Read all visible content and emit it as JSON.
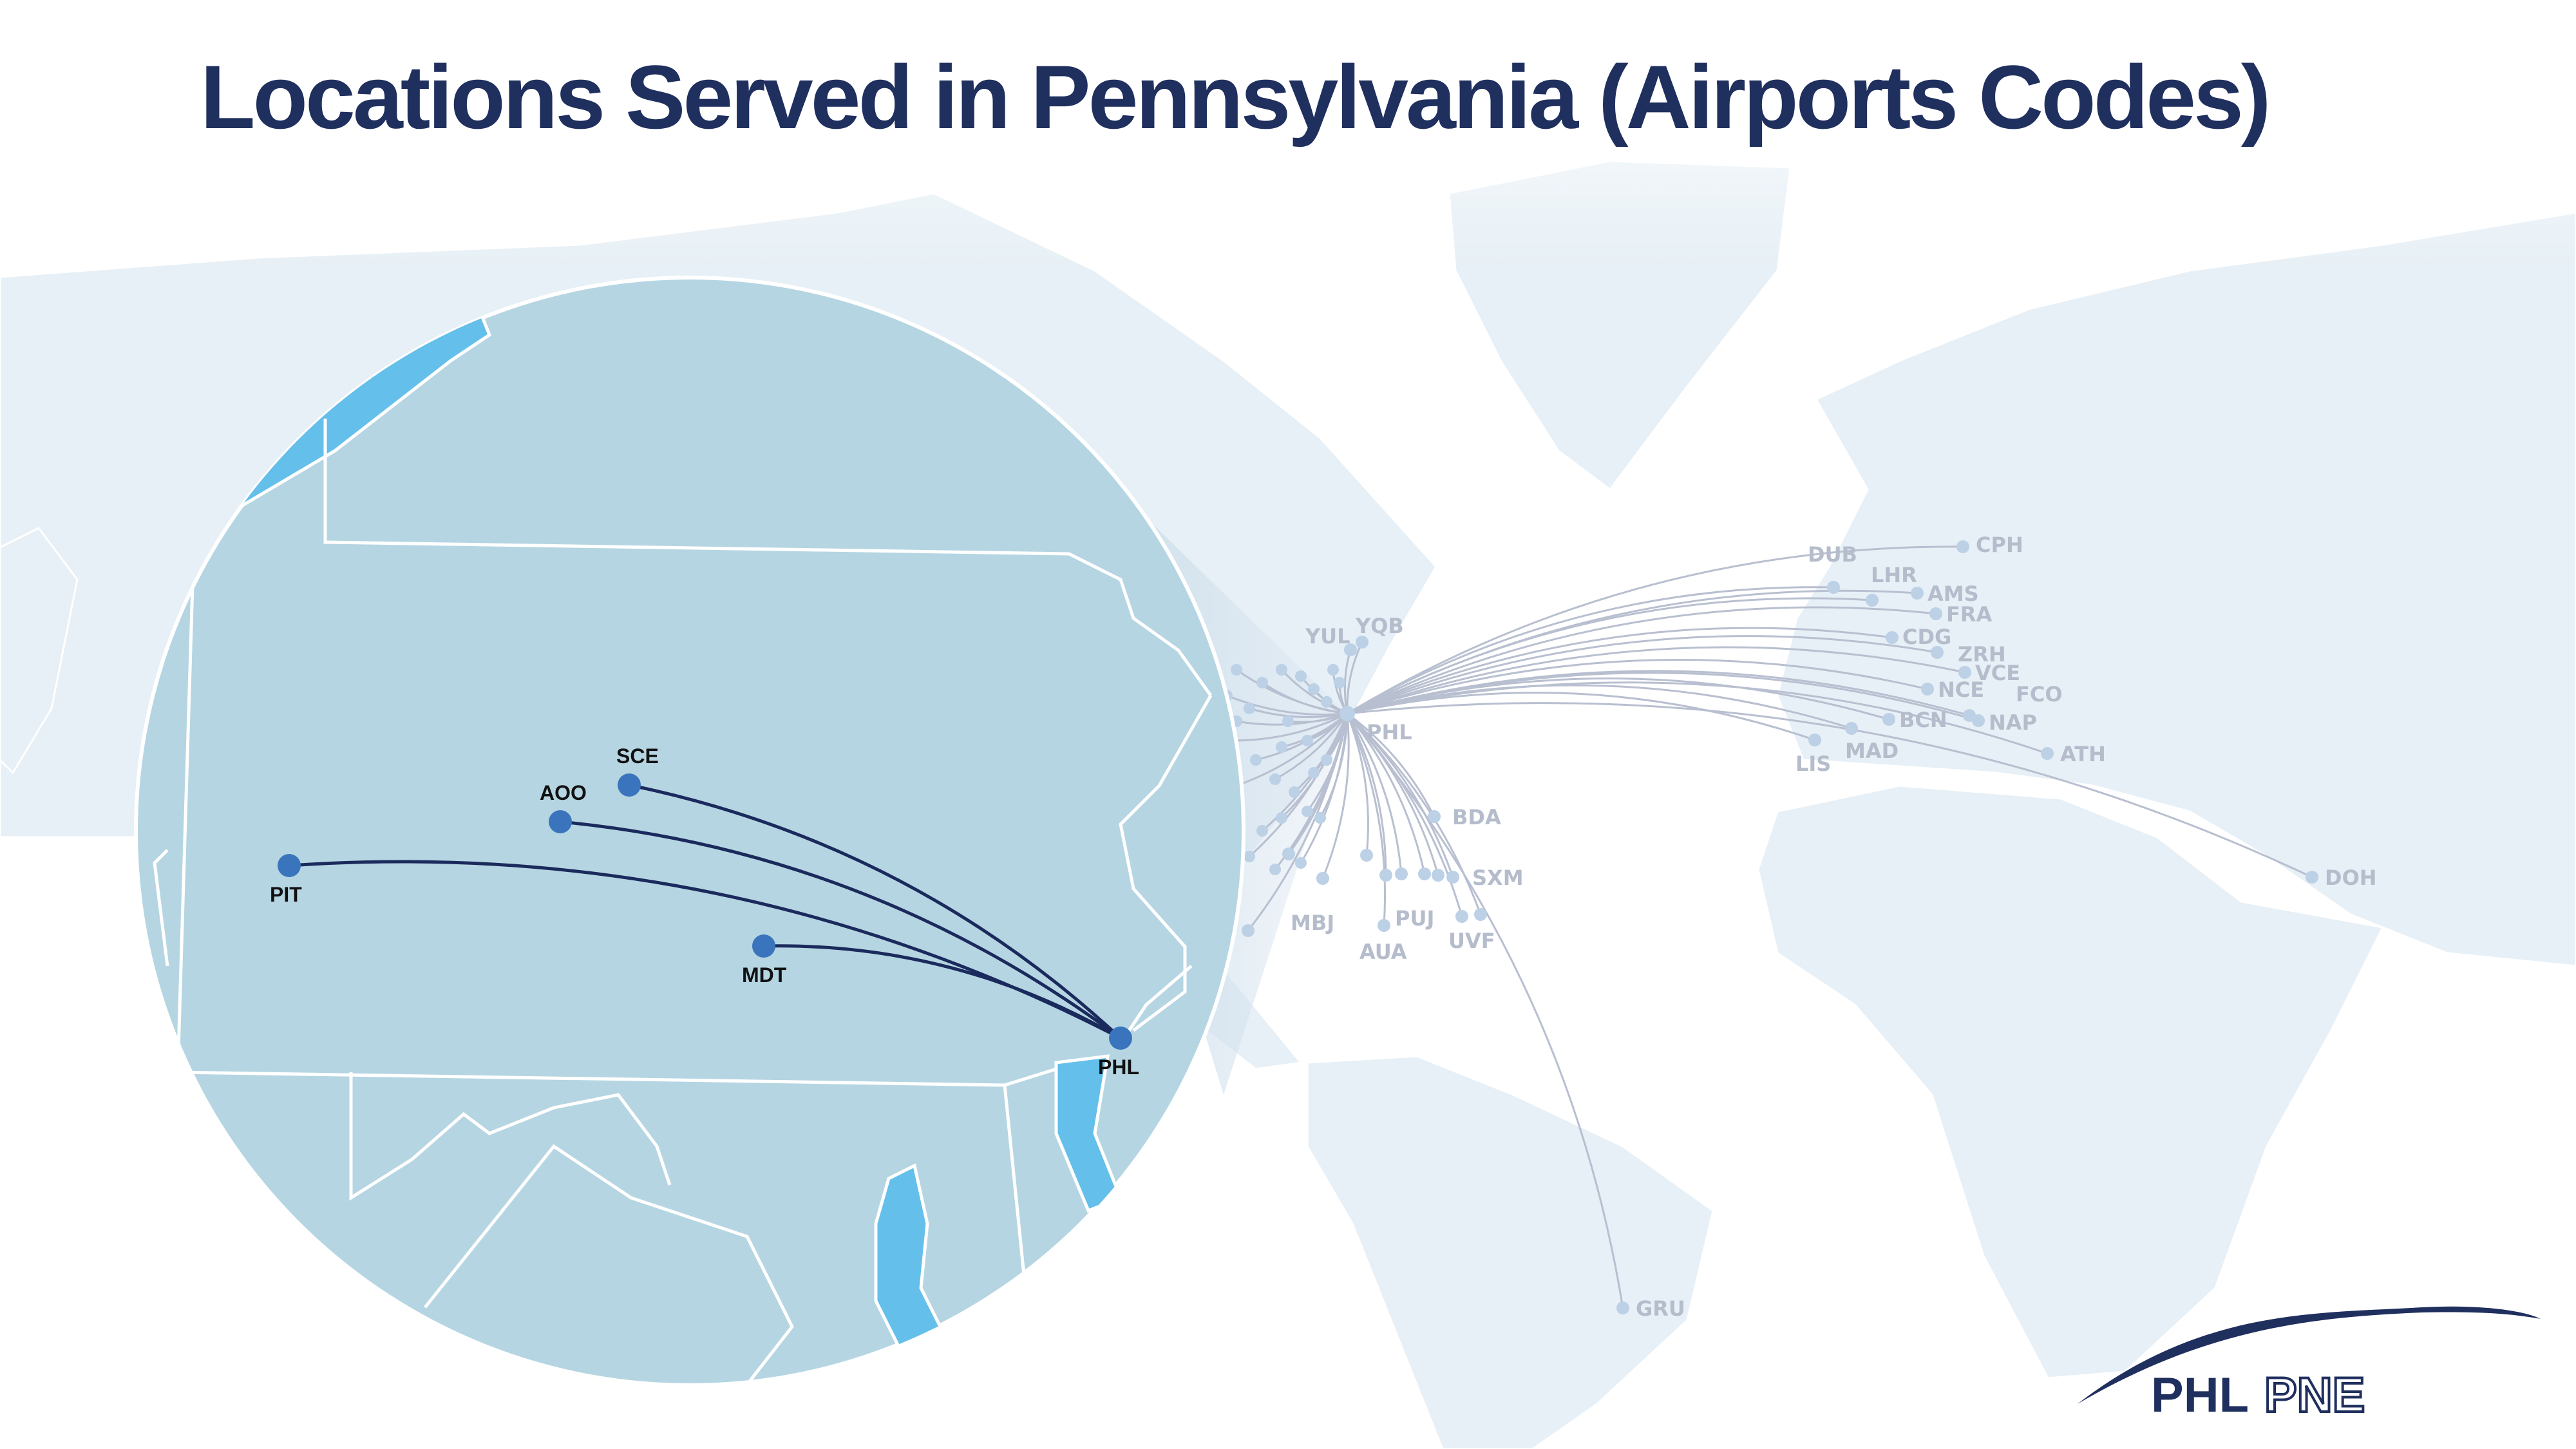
{
  "title": "Locations Served in Pennsylvania (Airports Codes)",
  "colors": {
    "title": "#1f2f5e",
    "land": "#e7f0f6",
    "inset_land": "#b5d5e2",
    "inset_water": "#64bfea",
    "route_world": "#b8bfd0",
    "dot_world": "#bcd0e6",
    "route_inset": "#1b2a5c",
    "dot_inset": "#3a74bd",
    "logo": "#1f2f5e"
  },
  "hub": {
    "code": "PHL"
  },
  "inset": {
    "hub": "PHL",
    "airports": [
      {
        "code": "SCE"
      },
      {
        "code": "AOO"
      },
      {
        "code": "PIT"
      },
      {
        "code": "MDT"
      }
    ]
  },
  "destinations": [
    {
      "code": "CPH"
    },
    {
      "code": "DUB"
    },
    {
      "code": "LHR"
    },
    {
      "code": "AMS"
    },
    {
      "code": "FRA"
    },
    {
      "code": "CDG"
    },
    {
      "code": "ZRH"
    },
    {
      "code": "VCE"
    },
    {
      "code": "NCE"
    },
    {
      "code": "FCO"
    },
    {
      "code": "NAP"
    },
    {
      "code": "BCN"
    },
    {
      "code": "MAD"
    },
    {
      "code": "LIS"
    },
    {
      "code": "ATH"
    },
    {
      "code": "DOH"
    },
    {
      "code": "GRU"
    },
    {
      "code": "BDA"
    },
    {
      "code": "YUL"
    },
    {
      "code": "YQB"
    },
    {
      "code": "MBJ"
    },
    {
      "code": "PUJ"
    },
    {
      "code": "SXM"
    },
    {
      "code": "AUA"
    },
    {
      "code": "UVF"
    }
  ],
  "logo": {
    "bold": "PHL",
    "outline": "PNE"
  }
}
